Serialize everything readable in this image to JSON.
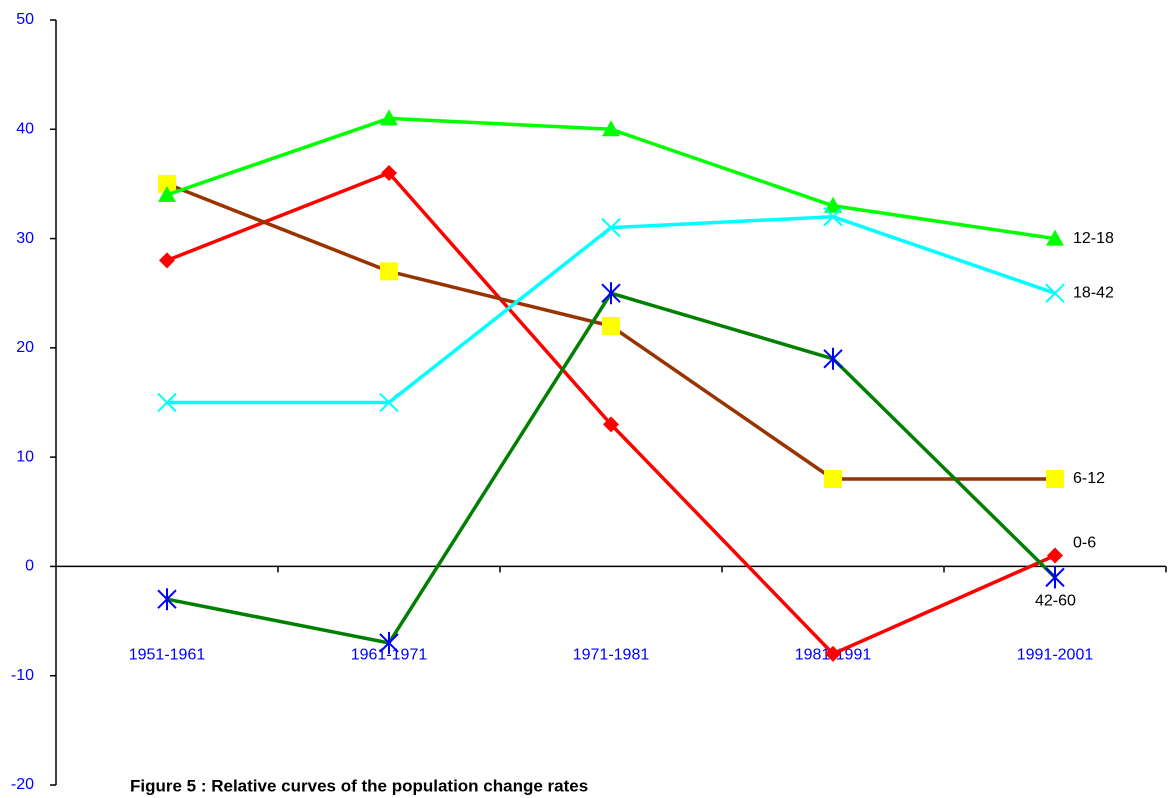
{
  "chart_data": {
    "type": "line",
    "title": "Figure 5 : Relative curves of the population change rates",
    "categories": [
      "1951-1961",
      "1961-1971",
      "1971-1981",
      "1981-1991",
      "1991-2001"
    ],
    "series": [
      {
        "name": "0-6",
        "color": "#ff0000",
        "marker": "diamond",
        "marker_color": "#ff0000",
        "values": [
          28,
          36,
          13,
          -8,
          1
        ]
      },
      {
        "name": "6-12",
        "color": "#993300",
        "marker": "square",
        "marker_color": "#ffff00",
        "values": [
          35,
          27,
          22,
          8,
          8
        ]
      },
      {
        "name": "12-18",
        "color": "#00ff00",
        "marker": "triangle",
        "marker_color": "#00ff00",
        "values": [
          34,
          41,
          40,
          33,
          30
        ]
      },
      {
        "name": "18-42",
        "color": "#00ffff",
        "marker": "x",
        "marker_color": "#00ffff",
        "values": [
          15,
          15,
          31,
          32,
          25
        ]
      },
      {
        "name": "42-60",
        "color": "#008000",
        "marker": "asterisk",
        "marker_color": "#0000ff",
        "values": [
          -3,
          -7,
          25,
          19,
          -1
        ]
      }
    ],
    "ylim": [
      -20,
      50
    ],
    "yticks": [
      -20,
      -10,
      0,
      10,
      20,
      30,
      40,
      50
    ],
    "grid": false
  }
}
